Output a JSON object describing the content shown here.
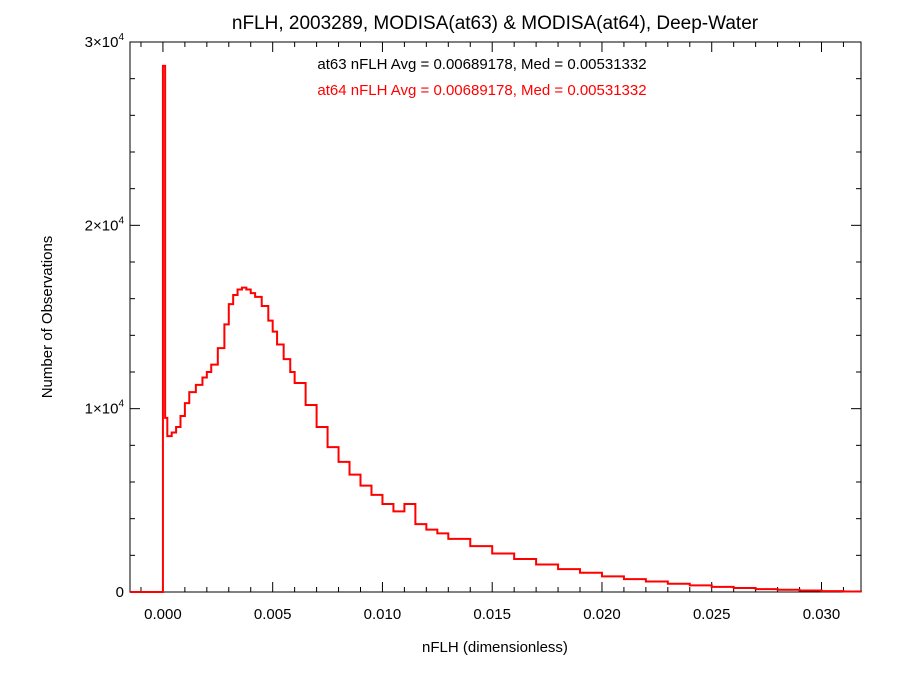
{
  "chart_data": {
    "type": "histogram",
    "title": "nFLH, 2003289, MODISA(at63) & MODISA(at64), Deep-Water",
    "xlabel": "nFLH (dimensionless)",
    "ylabel": "Number of Observations",
    "xlim": [
      -0.0015,
      0.0318
    ],
    "ylim": [
      0,
      30000
    ],
    "x_ticks": [
      {
        "value": 0.0,
        "label": "0.000"
      },
      {
        "value": 0.005,
        "label": "0.005"
      },
      {
        "value": 0.01,
        "label": "0.010"
      },
      {
        "value": 0.015,
        "label": "0.015"
      },
      {
        "value": 0.02,
        "label": "0.020"
      },
      {
        "value": 0.025,
        "label": "0.025"
      },
      {
        "value": 0.03,
        "label": "0.030"
      }
    ],
    "y_ticks": [
      {
        "value": 0,
        "base": "0",
        "exp": ""
      },
      {
        "value": 10000,
        "base": "1×10",
        "exp": "4"
      },
      {
        "value": 20000,
        "base": "2×10",
        "exp": "4"
      },
      {
        "value": 30000,
        "base": "3×10",
        "exp": "4"
      }
    ],
    "grid": false,
    "annotations": [
      {
        "text": "at63 nFLH Avg = 0.00689178, Med = 0.00531332",
        "color": "#000000"
      },
      {
        "text": "at64 nFLH Avg = 0.00689178, Med = 0.00531332",
        "color": "#ff0000"
      }
    ],
    "series": [
      {
        "color": "#ff0000",
        "x": [
          -0.0015,
          0.0,
          0.0001,
          0.0002,
          0.0004,
          0.0006,
          0.0008,
          0.001,
          0.0012,
          0.0015,
          0.0018,
          0.002,
          0.0022,
          0.0025,
          0.0028,
          0.003,
          0.0032,
          0.0034,
          0.0036,
          0.0038,
          0.004,
          0.0042,
          0.0045,
          0.0048,
          0.005,
          0.0052,
          0.0055,
          0.0058,
          0.006,
          0.0065,
          0.007,
          0.0075,
          0.008,
          0.0085,
          0.009,
          0.0095,
          0.01,
          0.0105,
          0.011,
          0.0115,
          0.012,
          0.0125,
          0.013,
          0.014,
          0.015,
          0.016,
          0.017,
          0.018,
          0.019,
          0.02,
          0.021,
          0.022,
          0.023,
          0.024,
          0.025,
          0.026,
          0.027,
          0.028,
          0.029,
          0.03,
          0.031,
          0.0318
        ],
        "y": [
          0,
          28700,
          9500,
          8500,
          8700,
          9000,
          9600,
          10300,
          10900,
          11300,
          11700,
          12000,
          12400,
          13300,
          14600,
          15700,
          16200,
          16500,
          16600,
          16500,
          16300,
          16100,
          15600,
          14800,
          14200,
          13500,
          12700,
          12000,
          11400,
          10200,
          9000,
          7900,
          7100,
          6400,
          5800,
          5300,
          4800,
          4400,
          4800,
          3700,
          3400,
          3200,
          2900,
          2500,
          2100,
          1800,
          1500,
          1250,
          1050,
          850,
          700,
          570,
          450,
          360,
          280,
          220,
          160,
          120,
          80,
          50,
          30,
          20
        ]
      }
    ]
  }
}
